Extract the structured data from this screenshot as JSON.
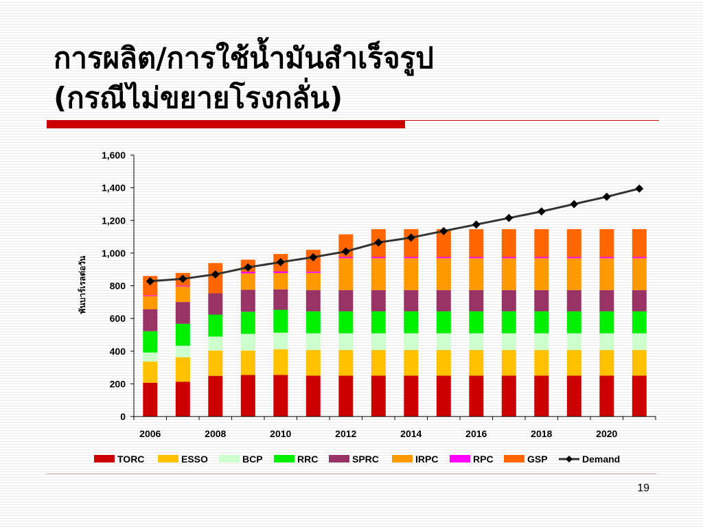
{
  "slide": {
    "title_line1": "การผลิต/การใช้น้ำมันสำเร็จรูป",
    "title_line2": "(กรณีไม่ขยายโรงกลั่น)",
    "page_number": "19"
  },
  "colors": {
    "title_bar": "#cc0000",
    "demand_line": "#333333"
  },
  "chart_data": {
    "type": "bar",
    "stacked": true,
    "title": "",
    "xlabel": "",
    "ylabel": "พันบาร์เรลต่อวัน",
    "ylim": [
      0,
      1600
    ],
    "yticks": [
      0,
      200,
      400,
      600,
      800,
      1000,
      1200,
      1400,
      1600
    ],
    "ytick_labels": [
      "0",
      "200",
      "400",
      "600",
      "800",
      "1,000",
      "1,200",
      "1,400",
      "1,600"
    ],
    "categories": [
      "2006",
      "2007",
      "2008",
      "2009",
      "2010",
      "2011",
      "2012",
      "2013",
      "2014",
      "2015",
      "2016",
      "2017",
      "2018",
      "2019",
      "2020",
      "2021"
    ],
    "x_tick_labels": [
      "2006",
      "2008",
      "2010",
      "2012",
      "2014",
      "2016",
      "2018",
      "2020"
    ],
    "grid": false,
    "legend_position": "bottom",
    "series": [
      {
        "name": "TORC",
        "color": "#cc0000",
        "values": [
          207,
          213,
          249,
          254,
          254,
          250,
          250,
          250,
          250,
          250,
          250,
          250,
          250,
          250,
          250,
          250
        ]
      },
      {
        "name": "ESSO",
        "color": "#ffc000",
        "values": [
          130,
          150,
          155,
          150,
          157,
          157,
          157,
          157,
          157,
          157,
          157,
          157,
          157,
          157,
          157,
          157
        ]
      },
      {
        "name": "BCP",
        "color": "#ccffcc",
        "values": [
          55,
          70,
          85,
          102,
          102,
          102,
          102,
          102,
          102,
          102,
          102,
          102,
          102,
          102,
          102,
          102
        ]
      },
      {
        "name": "RRC",
        "color": "#00ee00",
        "values": [
          130,
          135,
          135,
          135,
          140,
          135,
          135,
          135,
          135,
          135,
          135,
          135,
          135,
          135,
          135,
          135
        ]
      },
      {
        "name": "SPRC",
        "color": "#993366",
        "values": [
          135,
          133,
          130,
          135,
          125,
          130,
          130,
          130,
          130,
          130,
          130,
          130,
          130,
          130,
          130,
          130
        ]
      },
      {
        "name": "IRPC",
        "color": "#ff9900",
        "values": [
          80,
          95,
          0,
          100,
          100,
          105,
          195,
          195,
          195,
          195,
          195,
          195,
          195,
          195,
          195,
          195
        ]
      },
      {
        "name": "RPC",
        "color": "#ff00ff",
        "values": [
          5,
          5,
          0,
          10,
          10,
          8,
          8,
          8,
          8,
          8,
          8,
          8,
          8,
          8,
          8,
          8
        ]
      },
      {
        "name": "GSP",
        "color": "#ff6600",
        "values": [
          118,
          78,
          185,
          74,
          107,
          133,
          138,
          170,
          170,
          170,
          170,
          170,
          170,
          170,
          170,
          170
        ]
      }
    ],
    "line_series": {
      "name": "Demand",
      "color": "#333333",
      "marker": "diamond",
      "values": [
        828,
        843,
        870,
        913,
        945,
        975,
        1010,
        1065,
        1095,
        1135,
        1175,
        1215,
        1255,
        1300,
        1345,
        1395
      ]
    }
  }
}
